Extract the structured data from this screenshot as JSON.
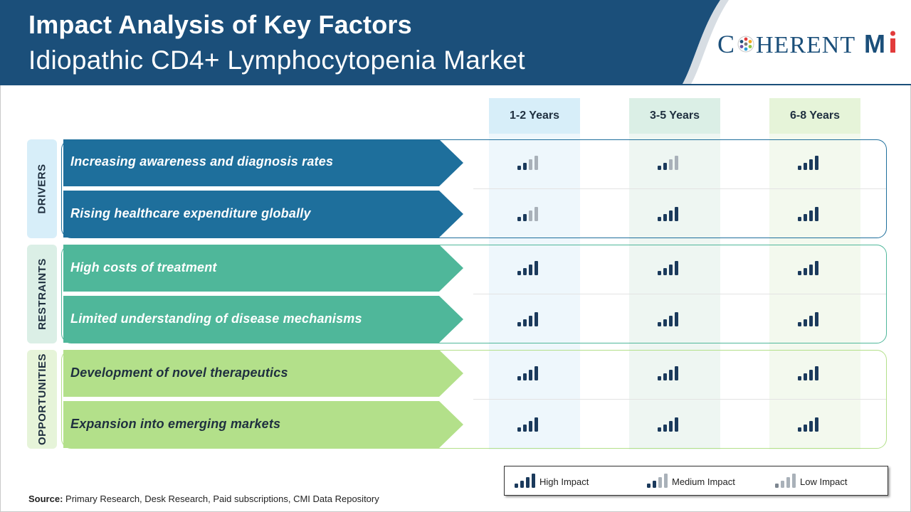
{
  "header": {
    "title": "Impact Analysis of Key Factors",
    "subtitle": "Idiopathic CD4+ Lymphocytopenia Market",
    "logo_text_left": "C",
    "logo_text_mid": "HERENT",
    "logo_text_right": "Mi"
  },
  "columns": [
    "1-2 Years",
    "3-5 Years",
    "6-8 Years"
  ],
  "groups": [
    {
      "name": "DRIVERS",
      "color": "#1e6f9c",
      "rows": [
        {
          "label": "Increasing awareness and diagnosis rates",
          "impacts": [
            "medium",
            "medium",
            "high"
          ]
        },
        {
          "label": "Rising healthcare expenditure globally",
          "impacts": [
            "medium",
            "high",
            "high"
          ]
        }
      ]
    },
    {
      "name": "RESTRAINTS",
      "color": "#4fb79a",
      "rows": [
        {
          "label": "High costs of treatment",
          "impacts": [
            "high",
            "high",
            "high"
          ]
        },
        {
          "label": "Limited understanding of disease mechanisms",
          "impacts": [
            "high",
            "high",
            "high"
          ]
        }
      ]
    },
    {
      "name": "OPPORTUNITIES",
      "color": "#b3e08a",
      "rows": [
        {
          "label": "Development of novel therapeutics",
          "impacts": [
            "high",
            "high",
            "high"
          ]
        },
        {
          "label": "Expansion into emerging markets",
          "impacts": [
            "high",
            "high",
            "high"
          ]
        }
      ]
    }
  ],
  "legend": {
    "high": "High Impact",
    "medium": "Medium Impact",
    "low": "Low Impact"
  },
  "source": {
    "label": "Source:",
    "text": "Primary Research, Desk Research, Paid subscriptions, CMI Data Repository"
  }
}
